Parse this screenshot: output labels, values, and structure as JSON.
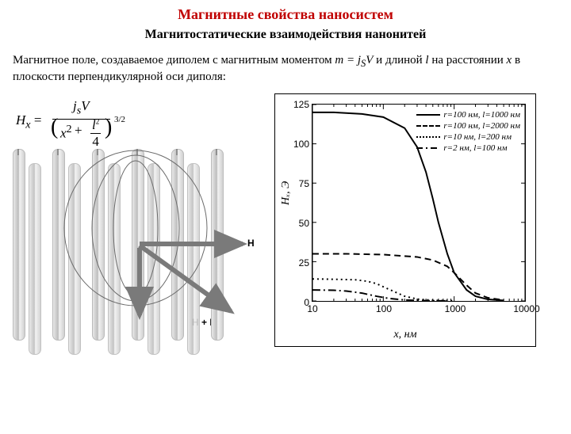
{
  "title": "Магнитные свойства наносистем",
  "subtitle": "Магнитостатические взаимодействия нанонитей",
  "paragraph_pre": "Магнитное поле, создаваемое диполем с магнитным моментом ",
  "paragraph_eq": "m = j",
  "paragraph_sub": "S",
  "paragraph_eqV": "V",
  "paragraph_mid": "  и длиной ",
  "paragraph_l": "l",
  "paragraph_post": " на расстоянии ",
  "paragraph_x": "x",
  "paragraph_end": " в плоскости перпендикулярной оси диполя:",
  "formula_Hx": "H",
  "formula_Hx_sub": "x",
  "formula_eq": " = ",
  "formula_num": "j",
  "formula_num_sub": "s",
  "formula_numV": "V",
  "formula_den_x": "x",
  "formula_den_sq": "2",
  "formula_den_plus": " + ",
  "formula_den_l": "l",
  "formula_den_ls": "2",
  "formula_den_4": "4",
  "formula_exp": "3/2",
  "diagram": {
    "H_label": "H",
    "Hd_label": "H",
    "Hd_sub": "d",
    "Hsum_label": "H + H",
    "Hsum_sub": "d"
  },
  "chart": {
    "type": "line",
    "x_axis_label": "x, нм",
    "y_axis_label": "Hₓ, Э",
    "x_scale": "log",
    "xlim": [
      10,
      10000
    ],
    "ylim": [
      0,
      125
    ],
    "x_ticks": [
      10,
      100,
      1000,
      10000
    ],
    "x_tick_labels": [
      "10",
      "100",
      "1000",
      "10000"
    ],
    "y_ticks": [
      0,
      25,
      50,
      75,
      100,
      125
    ],
    "background_color": "#ffffff",
    "axis_color": "#000000",
    "legend": [
      {
        "label": "r=100 нм, l=1000 нм",
        "style": "solid",
        "width": 2
      },
      {
        "label": "r=100 нм, l=2000 нм",
        "style": "dash",
        "width": 2
      },
      {
        "label": "r=10 нм, l=200 нм",
        "style": "dot",
        "width": 2
      },
      {
        "label": "r=2 нм, l=100 нм",
        "style": "dashdot",
        "width": 2
      }
    ],
    "series": [
      {
        "name": "s1",
        "style": "solid",
        "width": 2,
        "color": "#000000",
        "x": [
          10,
          20,
          50,
          100,
          200,
          300,
          400,
          500,
          600,
          800,
          1000,
          1500,
          2000,
          3000,
          5000
        ],
        "y": [
          120,
          120,
          119,
          117,
          110,
          98,
          82,
          65,
          50,
          30,
          18,
          7,
          3,
          1,
          0.3
        ]
      },
      {
        "name": "s2",
        "style": "dash",
        "width": 2,
        "color": "#000000",
        "x": [
          10,
          30,
          100,
          300,
          500,
          800,
          1000,
          1500,
          2000,
          3000,
          5000
        ],
        "y": [
          30,
          30,
          29.5,
          28,
          26,
          22,
          18,
          10,
          5,
          2,
          0.5
        ]
      },
      {
        "name": "s3",
        "style": "dot",
        "width": 2,
        "color": "#000000",
        "x": [
          10,
          20,
          40,
          60,
          80,
          100,
          150,
          200,
          300,
          500,
          1000
        ],
        "y": [
          14,
          13.8,
          13.5,
          12.5,
          11,
          9,
          5.5,
          3,
          1.2,
          0.4,
          0.1
        ]
      },
      {
        "name": "s4",
        "style": "dashdot",
        "width": 2,
        "color": "#000000",
        "x": [
          10,
          20,
          30,
          50,
          80,
          120,
          200,
          400,
          800
        ],
        "y": [
          7,
          6.8,
          6.3,
          5,
          3,
          1.6,
          0.6,
          0.15,
          0.04
        ]
      }
    ]
  }
}
